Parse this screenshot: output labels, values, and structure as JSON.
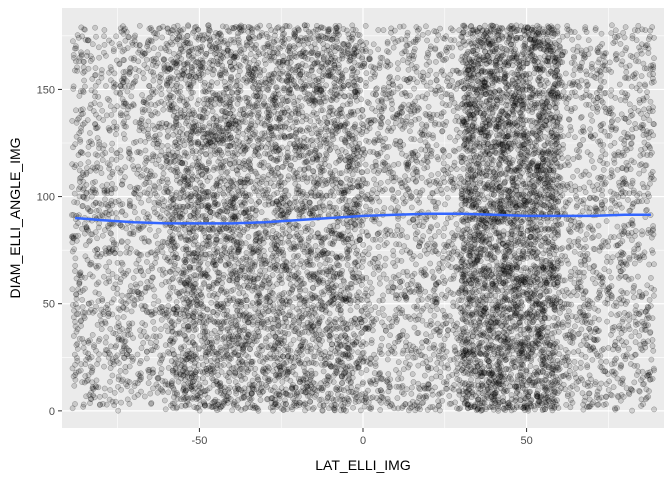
{
  "chart_data": {
    "type": "scatter",
    "title": "",
    "xlabel": "LAT_ELLI_IMG",
    "ylabel": "DIAM_ELLI_ANGLE_IMG",
    "xlim": [
      -92,
      92
    ],
    "ylim": [
      -8,
      188
    ],
    "x_ticks": [
      -50,
      0,
      50
    ],
    "y_ticks": [
      0,
      50,
      100,
      150
    ],
    "x_tick_labels": [
      "-50",
      "0",
      "50"
    ],
    "y_tick_labels": [
      "0",
      "50",
      "100",
      "150"
    ],
    "grid": true,
    "legend": "none",
    "point_color": "#000000",
    "point_alpha": 0.15,
    "scatter_x_range": [
      -89,
      89
    ],
    "scatter_y_range": [
      0,
      180
    ],
    "dense_x_bands": [
      [
        -60,
        0
      ],
      [
        30,
        60
      ]
    ],
    "smooth_color": "#3366FF",
    "smooth_line": {
      "x": [
        -88,
        -80,
        -70,
        -60,
        -50,
        -40,
        -30,
        -20,
        -10,
        0,
        10,
        20,
        30,
        40,
        50,
        60,
        70,
        80,
        88
      ],
      "y": [
        90,
        89,
        88,
        87.5,
        87.5,
        87.5,
        88,
        89,
        90,
        91,
        91.5,
        92,
        92,
        91.5,
        91,
        91,
        91,
        91.5,
        91.5
      ]
    }
  }
}
